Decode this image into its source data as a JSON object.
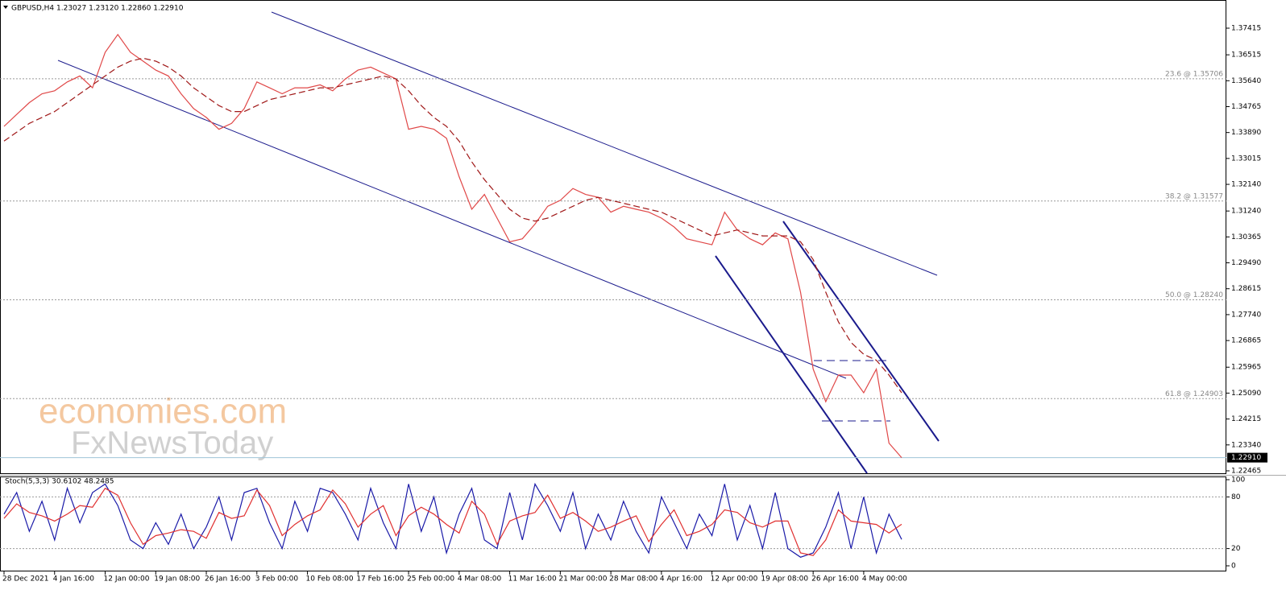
{
  "chart_data": [
    {
      "type": "line",
      "title": "GBPUSD,H4  1.23027 1.23120 1.22860 1.22910",
      "watermark": [
        "economies.com",
        "FxNewsToday"
      ],
      "categories": [
        "28 Dec 2021",
        null,
        null,
        null,
        "4 Jan 16:00",
        null,
        null,
        null,
        "12 Jan 00:00",
        null,
        null,
        null,
        "19 Jan 08:00",
        null,
        null,
        null,
        "26 Jan 16:00",
        null,
        null,
        null,
        "3 Feb 00:00",
        null,
        null,
        null,
        "10 Feb 08:00",
        null,
        null,
        null,
        "17 Feb 16:00",
        null,
        null,
        null,
        "25 Feb 00:00",
        null,
        null,
        null,
        "4 Mar 08:00",
        null,
        null,
        null,
        "11 Mar 16:00",
        null,
        null,
        null,
        "21 Mar 00:00",
        null,
        null,
        null,
        "28 Mar 08:00",
        null,
        null,
        null,
        "4 Apr 16:00",
        null,
        null,
        null,
        "12 Apr 00:00",
        null,
        null,
        null,
        "19 Apr 08:00",
        null,
        null,
        null,
        "26 Apr 16:00",
        null,
        null,
        null,
        "4 May 00:00",
        null,
        null,
        null
      ],
      "series": [
        {
          "color": "#e04848",
          "values": [
            1.341,
            1.345,
            1.349,
            1.352,
            1.353,
            1.356,
            1.358,
            1.354,
            1.366,
            1.372,
            1.366,
            1.363,
            1.36,
            1.358,
            1.352,
            1.347,
            1.344,
            1.34,
            1.342,
            1.347,
            1.356,
            1.354,
            1.352,
            1.354,
            1.354,
            1.355,
            1.353,
            1.357,
            1.36,
            1.361,
            1.359,
            1.357,
            1.34,
            1.341,
            1.34,
            1.337,
            1.324,
            1.313,
            1.318,
            1.31,
            1.302,
            1.303,
            1.308,
            1.314,
            1.316,
            1.32,
            1.318,
            1.317,
            1.312,
            1.314,
            1.313,
            1.312,
            1.31,
            1.307,
            1.303,
            1.302,
            1.301,
            1.312,
            1.306,
            1.303,
            1.301,
            1.305,
            1.303,
            1.285,
            1.259,
            1.248,
            1.257,
            1.257,
            1.251,
            1.259,
            1.234,
            1.2291
          ]
        },
        {
          "color": "#a01818",
          "dashed": true,
          "values": [
            1.336,
            1.339,
            1.342,
            1.344,
            1.346,
            1.349,
            1.352,
            1.355,
            1.358,
            1.361,
            1.363,
            1.364,
            1.363,
            1.361,
            1.358,
            1.354,
            1.351,
            1.348,
            1.346,
            1.346,
            1.348,
            1.35,
            1.351,
            1.352,
            1.353,
            1.354,
            1.354,
            1.355,
            1.356,
            1.357,
            1.358,
            1.357,
            1.353,
            1.348,
            1.344,
            1.341,
            1.336,
            1.329,
            1.323,
            1.318,
            1.313,
            1.31,
            1.309,
            1.31,
            1.312,
            1.314,
            1.316,
            1.317,
            1.316,
            1.315,
            1.314,
            1.313,
            1.312,
            1.31,
            1.308,
            1.306,
            1.304,
            1.305,
            1.306,
            1.305,
            1.304,
            1.304,
            1.304,
            1.302,
            1.296,
            1.285,
            1.275,
            1.268,
            1.264,
            1.262,
            1.257,
            1.251
          ]
        }
      ],
      "ylim": [
        1.22383,
        1.38312
      ],
      "yticks": [
        1.37415,
        1.36515,
        {
          "value": 1.3564,
          "label": "1.35640"
        },
        1.34765,
        {
          "value": 1.3389,
          "label": "1.33890"
        },
        1.33015,
        {
          "value": 1.3214,
          "label": "1.32140"
        },
        {
          "value": 1.3124,
          "label": "1.31240"
        },
        1.30365,
        {
          "value": 1.2949,
          "label": "1.29490"
        },
        1.28615,
        {
          "value": 1.2774,
          "label": "1.27740"
        },
        1.26865,
        1.25965,
        {
          "value": 1.2509,
          "label": "1.25090"
        },
        1.24215,
        {
          "value": 1.2334,
          "label": "1.23340"
        },
        1.22465
      ],
      "current_price": {
        "value": 1.2291,
        "label": "1.22910"
      },
      "fib_levels": [
        {
          "value": 1.35706,
          "label": "23.6 @ 1.35706"
        },
        {
          "value": 1.31577,
          "label": "38.2 @ 1.31577"
        },
        {
          "value": 1.2824,
          "label": "50.0 @ 1.28240"
        },
        {
          "value": 1.24903,
          "label": "61.8 @ 1.24903"
        }
      ],
      "grid": false
    },
    {
      "type": "line",
      "title": "Stoch(5,3,3) 30.6102 48.2485",
      "series": [
        {
          "color": "#1a1aa8",
          "values": [
            60,
            85,
            40,
            75,
            30,
            90,
            50,
            85,
            95,
            70,
            30,
            20,
            50,
            25,
            60,
            20,
            45,
            80,
            30,
            85,
            90,
            50,
            20,
            75,
            40,
            90,
            85,
            60,
            30,
            90,
            50,
            20,
            95,
            40,
            80,
            15,
            60,
            90,
            30,
            20,
            85,
            30,
            95,
            70,
            40,
            85,
            20,
            60,
            30,
            75,
            40,
            15,
            80,
            50,
            20,
            60,
            35,
            95,
            30,
            70,
            20,
            85,
            20,
            10,
            15,
            45,
            85,
            20,
            80,
            15,
            60,
            30.6102
          ]
        },
        {
          "color": "#e03030",
          "values": [
            55,
            72,
            62,
            58,
            52,
            60,
            70,
            68,
            90,
            82,
            50,
            25,
            35,
            38,
            42,
            40,
            32,
            62,
            55,
            58,
            88,
            70,
            35,
            48,
            58,
            65,
            88,
            72,
            45,
            60,
            70,
            35,
            58,
            68,
            60,
            48,
            38,
            75,
            60,
            25,
            52,
            58,
            62,
            82,
            55,
            62,
            52,
            40,
            45,
            52,
            58,
            28,
            48,
            65,
            35,
            40,
            48,
            65,
            62,
            50,
            45,
            52,
            52,
            15,
            12,
            30,
            65,
            52,
            50,
            48,
            38,
            48.2485
          ]
        }
      ],
      "ylim": [
        0,
        100
      ],
      "yticks": [
        0,
        20,
        80,
        100
      ],
      "levels": [
        20,
        80
      ]
    }
  ]
}
